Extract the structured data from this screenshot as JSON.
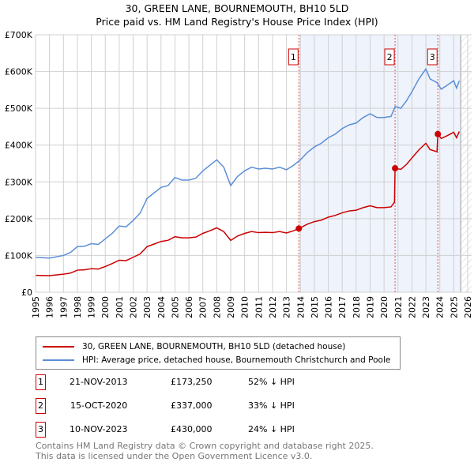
{
  "chart_data": {
    "type": "line",
    "title": "30, GREEN LANE, BOURNEMOUTH, BH10 5LD",
    "subtitle": "Price paid vs. HM Land Registry's House Price Index (HPI)",
    "xlim": [
      1995,
      2026
    ],
    "ylim": [
      0,
      700000
    ],
    "x_ticks": [
      "1995",
      "1996",
      "1997",
      "1998",
      "1999",
      "2000",
      "2001",
      "2002",
      "2003",
      "2004",
      "2005",
      "2006",
      "2007",
      "2008",
      "2009",
      "2010",
      "2011",
      "2012",
      "2013",
      "2014",
      "2015",
      "2016",
      "2017",
      "2018",
      "2019",
      "2020",
      "2021",
      "2022",
      "2023",
      "2024",
      "2025",
      "2026"
    ],
    "y_ticks": [
      {
        "v": 0,
        "label": "£0"
      },
      {
        "v": 100000,
        "label": "£100K"
      },
      {
        "v": 200000,
        "label": "£200K"
      },
      {
        "v": 300000,
        "label": "£300K"
      },
      {
        "v": 400000,
        "label": "£400K"
      },
      {
        "v": 500000,
        "label": "£500K"
      },
      {
        "v": 600000,
        "label": "£600K"
      },
      {
        "v": 700000,
        "label": "£700K"
      }
    ],
    "grid": true,
    "shaded_from": 2013.89,
    "hatched_from": 2025.5,
    "series": [
      {
        "name": "30, GREEN LANE, BOURNEMOUTH, BH10 5LD (detached house)",
        "color": "#cc0000",
        "x": [
          1995,
          1996,
          1997,
          1997.5,
          1998,
          1998.5,
          1999,
          1999.5,
          2000,
          2000.5,
          2001,
          2001.5,
          2002,
          2002.5,
          2003,
          2003.5,
          2004,
          2004.5,
          2005,
          2005.5,
          2006,
          2006.5,
          2007,
          2007.5,
          2008,
          2008.5,
          2009,
          2009.5,
          2010,
          2010.5,
          2011,
          2011.5,
          2012,
          2012.5,
          2013,
          2013.5,
          2013.89,
          2014.5,
          2015,
          2015.5,
          2016,
          2016.5,
          2017,
          2017.5,
          2018,
          2018.5,
          2019,
          2019.5,
          2020,
          2020.5,
          2020.75,
          2020.79,
          2021.2,
          2021.6,
          2022,
          2022.5,
          2023,
          2023.3,
          2023.8,
          2023.86,
          2024.1,
          2024.5,
          2025,
          2025.2,
          2025.4
        ],
        "y": [
          46,
          45,
          49,
          52,
          60,
          61,
          64,
          63,
          70,
          78,
          87,
          86,
          95,
          104,
          124,
          131,
          138,
          141,
          151,
          148,
          148,
          150,
          160,
          167,
          175,
          165,
          141,
          153,
          160,
          165,
          162,
          163,
          162,
          165,
          161,
          167,
          173.25,
          185,
          192,
          196,
          204,
          209,
          216,
          221,
          223,
          230,
          235,
          230,
          230,
          232,
          245,
          337,
          334,
          347,
          365,
          387,
          405,
          388,
          382,
          430,
          418,
          425,
          435,
          420,
          437
        ]
      },
      {
        "name": "HPI: Average price, detached house, Bournemouth Christchurch and Poole",
        "color": "#5b8fd6",
        "x": [
          1995,
          1996,
          1997,
          1997.5,
          1998,
          1998.5,
          1999,
          1999.5,
          2000,
          2000.5,
          2001,
          2001.5,
          2002,
          2002.5,
          2003,
          2003.5,
          2004,
          2004.5,
          2005,
          2005.5,
          2006,
          2006.5,
          2007,
          2007.5,
          2008,
          2008.5,
          2009,
          2009.5,
          2010,
          2010.5,
          2011,
          2011.5,
          2012,
          2012.5,
          2013,
          2013.5,
          2014,
          2014.5,
          2015,
          2015.5,
          2016,
          2016.5,
          2017,
          2017.5,
          2018,
          2018.5,
          2019,
          2019.5,
          2020,
          2020.5,
          2020.8,
          2021.2,
          2021.6,
          2022,
          2022.5,
          2023,
          2023.3,
          2023.8,
          2024.1,
          2024.5,
          2025,
          2025.2,
          2025.4
        ],
        "y": [
          95,
          93,
          100,
          108,
          124,
          125,
          132,
          130,
          145,
          160,
          180,
          178,
          195,
          215,
          255,
          270,
          285,
          290,
          312,
          305,
          305,
          310,
          330,
          345,
          360,
          340,
          290,
          315,
          330,
          340,
          335,
          337,
          335,
          340,
          333,
          345,
          360,
          380,
          395,
          405,
          420,
          430,
          445,
          455,
          460,
          475,
          485,
          475,
          475,
          478,
          505,
          500,
          520,
          545,
          580,
          607,
          580,
          570,
          552,
          562,
          575,
          555,
          575
        ]
      }
    ],
    "y_unit": "thousands GBP",
    "sales": [
      {
        "n": "1",
        "x": 2013.89,
        "y": 173.25,
        "date": "21-NOV-2013",
        "price": "£173,250",
        "hpi": "52% ↓ HPI"
      },
      {
        "n": "2",
        "x": 2020.79,
        "y": 337,
        "date": "15-OCT-2020",
        "price": "£337,000",
        "hpi": "33% ↓ HPI"
      },
      {
        "n": "3",
        "x": 2023.86,
        "y": 430,
        "date": "10-NOV-2023",
        "price": "£430,000",
        "hpi": "24% ↓ HPI"
      }
    ]
  },
  "footer": {
    "line1": "Contains HM Land Registry data © Crown copyright and database right 2025.",
    "line2": "This data is licensed under the Open Government Licence v3.0."
  }
}
